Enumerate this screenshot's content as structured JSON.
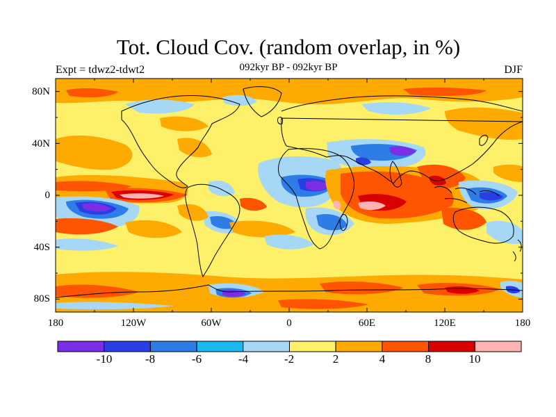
{
  "chart_data": {
    "type": "heatmap",
    "title": "Tot. Cloud Cov. (random overlap, in %)",
    "subtitle": "092kyr BP - 092kyr BP",
    "left_label": "Expt = tdwz2-tdwt2",
    "right_label": "DJF",
    "projection": "cylindrical-equidistant",
    "lon_range": [
      -180,
      180
    ],
    "lat_range": [
      -90,
      90
    ],
    "lat_ticks": [
      "80N",
      "40N",
      "0",
      "40S",
      "80S"
    ],
    "lon_ticks": [
      "180",
      "120W",
      "60W",
      "0",
      "60E",
      "120E",
      "180"
    ],
    "colorbar": {
      "levels": [
        "-10",
        "-8",
        "-6",
        "-4",
        "-2",
        "2",
        "4",
        "8",
        "10"
      ],
      "colors": [
        "#7b2ee6",
        "#2a3ee6",
        "#2e7ce6",
        "#1ab8f0",
        "#a6d8f5",
        "#fff06a",
        "#ffaa00",
        "#ff5500",
        "#d90000",
        "#ffb3b3"
      ]
    },
    "background_color": "#fff06a",
    "anomaly_regions": [
      {
        "name": "",
        "lon": -150,
        "lat": -10,
        "value": -10
      },
      {
        "name": "",
        "lon": -103,
        "lat": 0,
        "value": 12
      },
      {
        "name": "",
        "lon": 20,
        "lat": 5,
        "value": -10
      },
      {
        "name": "",
        "lon": 58,
        "lat": -10,
        "value": 12
      },
      {
        "name": "",
        "lon": 88,
        "lat": 32,
        "value": -10
      },
      {
        "name": "",
        "lon": 120,
        "lat": 5,
        "value": 8
      },
      {
        "name": "",
        "lon": 155,
        "lat": 0,
        "value": -6
      },
      {
        "name": "",
        "lon": -45,
        "lat": -78,
        "value": -8
      }
    ]
  }
}
